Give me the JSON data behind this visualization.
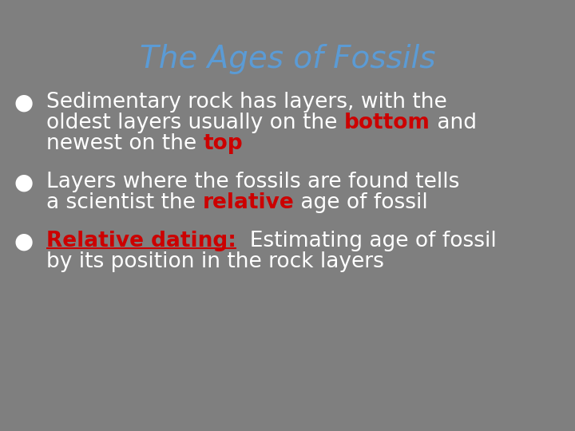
{
  "title": "The Ages of Fossils",
  "title_color": "#5B9BD5",
  "title_fontsize": 28,
  "background_color": "#7F7F7F",
  "bullet_color": "#FFFFFF",
  "bullet_fontsize": 19,
  "red_color": "#CC0000",
  "fig_width": 7.2,
  "fig_height": 5.4,
  "dpi": 100,
  "bullets": [
    {
      "segments": [
        {
          "text": "Sedimentary rock has layers, with the\noldest layers usually on the ",
          "color": "#FFFFFF",
          "bold": false,
          "underline": false
        },
        {
          "text": "bottom",
          "color": "#CC0000",
          "bold": true,
          "underline": false
        },
        {
          "text": " and\nnewest on the ",
          "color": "#FFFFFF",
          "bold": false,
          "underline": false
        },
        {
          "text": "top",
          "color": "#CC0000",
          "bold": true,
          "underline": false
        }
      ]
    },
    {
      "segments": [
        {
          "text": "Layers where the fossils are found tells\na scientist the ",
          "color": "#FFFFFF",
          "bold": false,
          "underline": false
        },
        {
          "text": "relative",
          "color": "#CC0000",
          "bold": true,
          "underline": false
        },
        {
          "text": " age of fossil",
          "color": "#FFFFFF",
          "bold": false,
          "underline": false
        }
      ]
    },
    {
      "segments": [
        {
          "text": "Relative dating:",
          "color": "#CC0000",
          "bold": true,
          "underline": true
        },
        {
          "text": "  Estimating age of fossil\nby its position in the rock layers",
          "color": "#FFFFFF",
          "bold": false,
          "underline": false
        }
      ]
    }
  ]
}
